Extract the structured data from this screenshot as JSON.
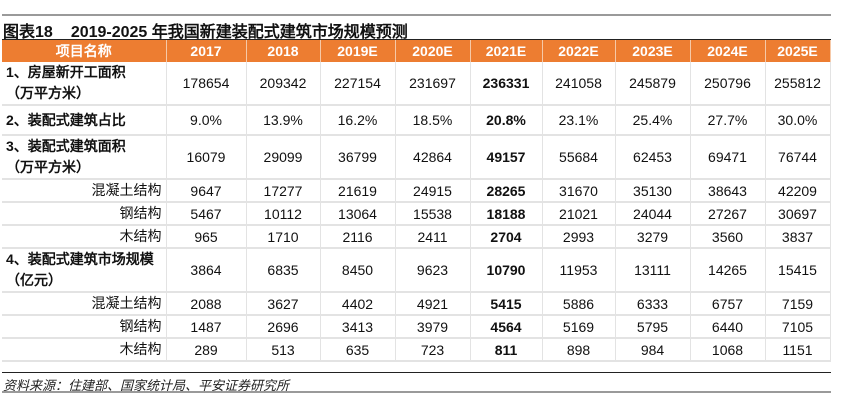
{
  "title": {
    "label": "图表18",
    "text": "2019-2025 年我国新建装配式建筑市场规模预测"
  },
  "header": [
    "项目名称",
    "2017",
    "2018",
    "2019E",
    "2020E",
    "2021E",
    "2022E",
    "2023E",
    "2024E",
    "2025E"
  ],
  "highlight_color": "#ED7D31",
  "rows": [
    {
      "label": "1、房屋新开工面积\n（万平方米）",
      "type": "main",
      "values": [
        "178654",
        "209342",
        "227154",
        "231697",
        "236331",
        "241058",
        "245879",
        "250796",
        "255812"
      ]
    },
    {
      "label": "2、装配式建筑占比",
      "type": "main1",
      "values": [
        "9.0%",
        "13.9%",
        "16.2%",
        "18.5%",
        "20.8%",
        "23.1%",
        "25.4%",
        "27.7%",
        "30.0%"
      ]
    },
    {
      "label": "3、装配式建筑面积\n（万平方米）",
      "type": "main",
      "values": [
        "16079",
        "29099",
        "36799",
        "42864",
        "49157",
        "55684",
        "62453",
        "69471",
        "76744"
      ]
    },
    {
      "label": "混凝土结构",
      "type": "sub",
      "values": [
        "9647",
        "17277",
        "21619",
        "24915",
        "28265",
        "31670",
        "35130",
        "38643",
        "42209"
      ]
    },
    {
      "label": "钢结构",
      "type": "sub",
      "values": [
        "5467",
        "10112",
        "13064",
        "15538",
        "18188",
        "21021",
        "24044",
        "27267",
        "30697"
      ]
    },
    {
      "label": "木结构",
      "type": "sub",
      "values": [
        "965",
        "1710",
        "2116",
        "2411",
        "2704",
        "2993",
        "3279",
        "3560",
        "3837"
      ]
    },
    {
      "label": "4、装配式建筑市场规模\n（亿元）",
      "type": "main",
      "values": [
        "3864",
        "6835",
        "8450",
        "9623",
        "10790",
        "11953",
        "13111",
        "14265",
        "15415"
      ]
    },
    {
      "label": "混凝土结构",
      "type": "sub",
      "values": [
        "2088",
        "3627",
        "4402",
        "4921",
        "5415",
        "5886",
        "6333",
        "6757",
        "7159"
      ]
    },
    {
      "label": "钢结构",
      "type": "sub",
      "values": [
        "1487",
        "2696",
        "3413",
        "3979",
        "4564",
        "5169",
        "5795",
        "6440",
        "7105"
      ]
    },
    {
      "label": "木结构",
      "type": "sub",
      "values": [
        "289",
        "513",
        "635",
        "723",
        "811",
        "898",
        "984",
        "1068",
        "1151"
      ]
    }
  ],
  "bold_column": "2021E",
  "source": "资料来源：住建部、国家统计局、平安证券研究所"
}
